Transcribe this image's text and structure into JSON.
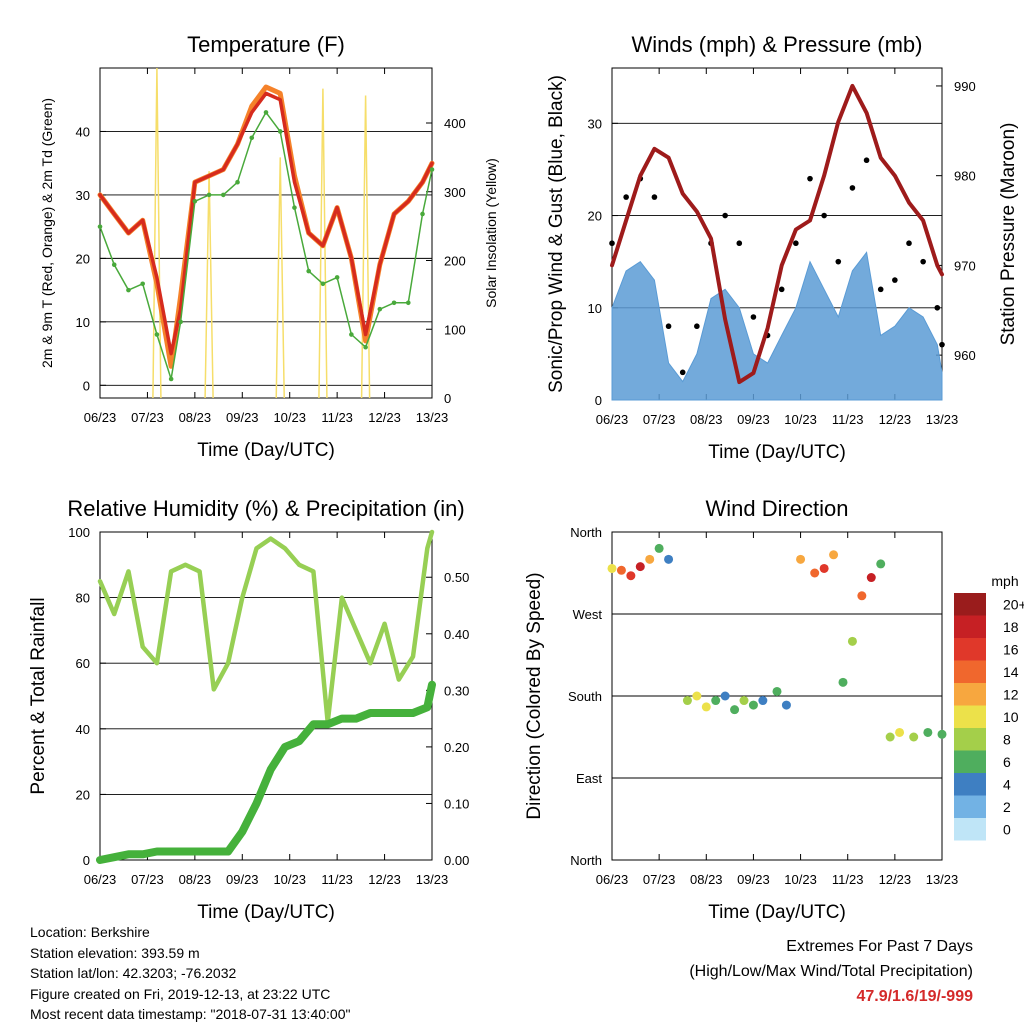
{
  "colors": {
    "temp_2m": "#d62b1e",
    "temp_9m": "#f5822a",
    "dewpoint": "#49a93b",
    "solar": "#f6de6a",
    "gust": "#000000",
    "wind": "#5a9bd5",
    "pressure": "#9e1b1b",
    "rh": "#97cf54",
    "precip": "#45b13b",
    "extremes": "#d42a2a"
  },
  "x_ticks": [
    "06/23",
    "07/23",
    "08/23",
    "09/23",
    "10/23",
    "11/23",
    "12/23",
    "13/23"
  ],
  "x_label": "Time (Day/UTC)",
  "panels": {
    "temperature": {
      "title": "Temperature (F)",
      "ylabel_left": "2m & 9m T (Red, Orange) & 2m Td (Green)",
      "ylabel_right": "Solar Insolation (Yellow)",
      "left_ticks": [
        "0",
        "10",
        "20",
        "30",
        "40"
      ],
      "right_ticks": [
        "0",
        "100",
        "200",
        "300",
        "400"
      ]
    },
    "winds": {
      "title": "Winds (mph) & Pressure (mb)",
      "ylabel_left": "Sonic/Prop Wind & Gust (Blue, Black)",
      "ylabel_right": "Station Pressure (Maroon)",
      "left_ticks": [
        "0",
        "10",
        "20",
        "30"
      ],
      "right_ticks": [
        "960",
        "970",
        "980",
        "990"
      ]
    },
    "humidity": {
      "title": "Relative Humidity (%) & Precipitation (in)",
      "ylabel_left": "Percent & Total Rainfall",
      "left_ticks": [
        "0",
        "20",
        "40",
        "60",
        "80",
        "100"
      ],
      "right_ticks": [
        "0.00",
        "0.10",
        "0.20",
        "0.30",
        "0.40",
        "0.50"
      ]
    },
    "direction": {
      "title": "Wind Direction",
      "ylabel_left": "Direction (Colored By Speed)",
      "left_ticks": [
        "North",
        "East",
        "South",
        "West",
        "North"
      ],
      "legend_title": "mph",
      "legend_labels": [
        "20+",
        "18",
        "16",
        "14",
        "12",
        "10",
        "8",
        "6",
        "4",
        "2",
        "0"
      ],
      "legend_colors": [
        "#9a1c1c",
        "#c62024",
        "#e0382a",
        "#f0672d",
        "#f7a73f",
        "#ece14a",
        "#a4cf4a",
        "#4fae5e",
        "#3e7fc2",
        "#72b2e4",
        "#bfe5f7"
      ]
    }
  },
  "info": {
    "location": "Location: Berkshire",
    "elevation": "Station elevation: 393.59 m",
    "latlon": "Station lat/lon: 42.3203; -76.2032",
    "created": "Figure created on Fri, 2019-12-13, at 23:22 UTC",
    "recent": "Most recent data timestamp: \"2018-07-31 13:40:00\""
  },
  "extremes": {
    "title": "Extremes For Past 7 Days",
    "subtitle": "(High/Low/Max Wind/Total Precipitation)",
    "values": "47.9/1.6/19/-999"
  },
  "chart_data": [
    {
      "type": "line",
      "title": "Temperature (F)",
      "xlabel": "Time (Day/UTC)",
      "ylabel": "2m & 9m T (Red, Orange) & 2m Td (Green)",
      "ylim": [
        -2,
        50
      ],
      "y2label": "Solar Insolation (Yellow)",
      "y2lim": [
        0,
        480
      ],
      "x": [
        6.0,
        6.3,
        6.6,
        6.9,
        7.2,
        7.5,
        7.7,
        8.0,
        8.3,
        8.6,
        8.9,
        9.2,
        9.5,
        9.8,
        10.1,
        10.4,
        10.7,
        11.0,
        11.3,
        11.6,
        11.9,
        12.2,
        12.5,
        12.8,
        13.0
      ],
      "series": [
        {
          "name": "2m T",
          "values": [
            30,
            27,
            24,
            26,
            17,
            5,
            12,
            32,
            33,
            34,
            38,
            43,
            46,
            45,
            32,
            24,
            22,
            28,
            20,
            8,
            19,
            27,
            29,
            32,
            35
          ]
        },
        {
          "name": "9m T",
          "values": [
            30,
            27,
            24,
            26,
            16,
            3,
            14,
            32,
            33,
            34,
            38,
            44,
            47,
            46,
            33,
            24,
            22,
            28,
            20,
            7,
            19,
            27,
            29,
            32,
            35
          ]
        },
        {
          "name": "2m Td",
          "values": [
            25,
            19,
            15,
            16,
            8,
            1,
            10,
            29,
            30,
            30,
            32,
            39,
            43,
            40,
            28,
            18,
            16,
            17,
            8,
            6,
            12,
            13,
            13,
            27,
            34
          ]
        },
        {
          "name": "Solar",
          "values": [
            0,
            0,
            0,
            0,
            480,
            0,
            0,
            0,
            330,
            0,
            0,
            0,
            0,
            350,
            0,
            0,
            450,
            0,
            0,
            440,
            0,
            0,
            0,
            0,
            0
          ]
        }
      ]
    },
    {
      "type": "line",
      "title": "Winds (mph) & Pressure (mb)",
      "xlabel": "Time (Day/UTC)",
      "ylabel": "Sonic/Prop Wind & Gust (Blue, Black)",
      "ylim": [
        0,
        36
      ],
      "y2label": "Station Pressure (Maroon)",
      "y2lim": [
        955,
        992
      ],
      "x": [
        6.0,
        6.3,
        6.6,
        6.9,
        7.2,
        7.5,
        7.8,
        8.1,
        8.4,
        8.7,
        9.0,
        9.3,
        9.6,
        9.9,
        10.2,
        10.5,
        10.8,
        11.1,
        11.4,
        11.7,
        12.0,
        12.3,
        12.6,
        12.9,
        13.0
      ],
      "series": [
        {
          "name": "Gust",
          "values": [
            17,
            22,
            24,
            22,
            8,
            3,
            8,
            17,
            20,
            17,
            9,
            7,
            12,
            17,
            24,
            20,
            15,
            23,
            26,
            12,
            13,
            17,
            15,
            10,
            6
          ]
        },
        {
          "name": "Wind",
          "values": [
            10,
            14,
            15,
            13,
            4,
            2,
            5,
            11,
            12,
            10,
            5,
            4,
            7,
            10,
            15,
            12,
            9,
            14,
            16,
            7,
            8,
            10,
            9,
            6,
            3
          ]
        },
        {
          "name": "Pressure",
          "values": [
            970,
            975,
            980,
            983,
            982,
            978,
            976,
            973,
            964,
            957,
            958,
            963,
            970,
            974,
            975,
            980,
            986,
            990,
            987,
            982,
            980,
            977,
            975,
            970,
            969
          ]
        }
      ]
    },
    {
      "type": "line",
      "title": "Relative Humidity (%) & Precipitation (in)",
      "xlabel": "Time (Day/UTC)",
      "ylabel": "Percent & Total Rainfall",
      "ylim": [
        0,
        100
      ],
      "y2lim": [
        0,
        0.58
      ],
      "x": [
        6.0,
        6.3,
        6.6,
        6.9,
        7.2,
        7.5,
        7.8,
        8.1,
        8.4,
        8.7,
        9.0,
        9.3,
        9.6,
        9.9,
        10.2,
        10.5,
        10.8,
        11.1,
        11.4,
        11.7,
        12.0,
        12.3,
        12.6,
        12.9,
        13.0
      ],
      "series": [
        {
          "name": "Relative Humidity",
          "values": [
            85,
            75,
            88,
            65,
            60,
            88,
            90,
            88,
            52,
            60,
            80,
            95,
            98,
            95,
            90,
            88,
            42,
            80,
            70,
            60,
            72,
            55,
            62,
            95,
            100
          ]
        },
        {
          "name": "Total Precipitation",
          "values": [
            0,
            0.005,
            0.01,
            0.01,
            0.015,
            0.015,
            0.015,
            0.015,
            0.015,
            0.015,
            0.05,
            0.1,
            0.16,
            0.2,
            0.21,
            0.24,
            0.24,
            0.25,
            0.25,
            0.26,
            0.26,
            0.26,
            0.26,
            0.27,
            0.31
          ]
        }
      ]
    },
    {
      "type": "scatter",
      "title": "Wind Direction",
      "xlabel": "Time (Day/UTC)",
      "ylabel": "Direction (Colored By Speed)",
      "ylim": [
        0,
        360
      ],
      "y_categories": [
        "North",
        "East",
        "South",
        "West",
        "North"
      ],
      "x": [
        6.0,
        6.2,
        6.4,
        6.6,
        6.8,
        7.0,
        7.2,
        7.6,
        7.8,
        8.0,
        8.2,
        8.4,
        8.6,
        8.8,
        9.0,
        9.2,
        9.5,
        9.7,
        10.0,
        10.3,
        10.5,
        10.7,
        10.9,
        11.1,
        11.3,
        11.5,
        11.7,
        11.9,
        12.1,
        12.4,
        12.7,
        13.0
      ],
      "series": [
        {
          "name": "Direction",
          "values": [
            320,
            318,
            312,
            322,
            330,
            342,
            330,
            175,
            180,
            168,
            175,
            180,
            165,
            175,
            170,
            175,
            185,
            170,
            330,
            315,
            320,
            335,
            195,
            240,
            290,
            310,
            325,
            135,
            140,
            135,
            140,
            138
          ]
        },
        {
          "name": "Speed",
          "values": [
            10,
            14,
            16,
            18,
            12,
            6,
            3,
            8,
            10,
            9,
            6,
            4,
            5,
            8,
            6,
            4,
            5,
            3,
            12,
            14,
            16,
            12,
            6,
            8,
            14,
            18,
            6,
            8,
            10,
            8,
            6,
            5
          ]
        }
      ]
    }
  ]
}
